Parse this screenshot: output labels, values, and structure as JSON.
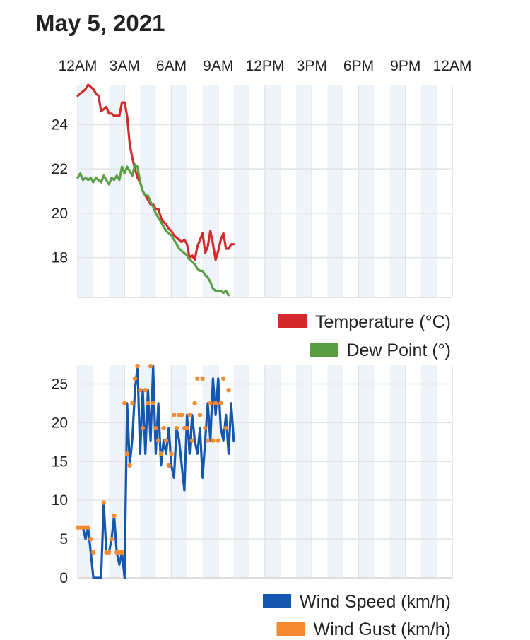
{
  "page_title": "May 5, 2021",
  "time_labels": [
    "12AM",
    "3AM",
    "6AM",
    "9AM",
    "12PM",
    "3PM",
    "6PM",
    "9PM",
    "12AM"
  ],
  "colors": {
    "temperature": "#d42a2e",
    "dew_point": "#5a9e44",
    "wind_speed": "#1456b0",
    "wind_gust": "#f58a31",
    "band": "#eef4fa",
    "grid": "#e3e3e3"
  },
  "chart_data": [
    {
      "type": "line",
      "x_unit": "hours since 12AM",
      "xlim": [
        0,
        24
      ],
      "ylim": [
        16.2,
        25.8
      ],
      "y_ticks": [
        18,
        20,
        22,
        24
      ],
      "grid": true,
      "legend_position": "bottom-right",
      "series": [
        {
          "name": "Temperature (°C)",
          "color": "#d42a2e",
          "x": [
            0,
            0.167,
            0.333,
            0.5,
            0.667,
            0.833,
            1.0,
            1.167,
            1.333,
            1.5,
            1.667,
            1.833,
            2.0,
            2.167,
            2.333,
            2.5,
            2.667,
            2.833,
            3.0,
            3.167,
            3.333,
            3.5,
            3.667,
            3.833,
            4.0,
            4.167,
            4.333,
            4.5,
            4.667,
            4.833,
            5.0,
            5.167,
            5.333,
            5.5,
            5.667,
            5.833,
            6.0,
            6.167,
            6.333,
            6.5,
            6.667,
            6.833,
            7.0,
            7.167,
            7.333,
            7.5,
            7.667,
            7.833,
            8.0,
            8.167,
            8.333,
            8.5,
            8.667,
            8.833,
            9.0,
            9.167,
            9.333,
            9.5,
            9.667,
            9.833,
            10.0
          ],
          "y": [
            25.3,
            25.4,
            25.5,
            25.6,
            25.8,
            25.7,
            25.6,
            25.4,
            25.3,
            24.6,
            24.7,
            24.8,
            24.5,
            24.5,
            24.4,
            24.4,
            24.4,
            25.0,
            25.0,
            24.4,
            23.1,
            22.5,
            22.0,
            21.6,
            21.4,
            21.0,
            20.8,
            20.6,
            20.4,
            20.4,
            20.2,
            20.2,
            19.8,
            19.6,
            19.5,
            19.3,
            19.2,
            19.0,
            18.9,
            18.8,
            18.7,
            18.8,
            18.6,
            18.0,
            18.1,
            17.9,
            18.5,
            18.8,
            19.1,
            18.2,
            18.5,
            19.2,
            18.6,
            17.9,
            18.3,
            18.8,
            19.1,
            18.4,
            18.4,
            18.6,
            18.6
          ],
          "x_end": 9.83
        },
        {
          "name": "Dew Point (°)",
          "color": "#5a9e44",
          "x": [
            0,
            0.167,
            0.333,
            0.5,
            0.667,
            0.833,
            1.0,
            1.167,
            1.333,
            1.5,
            1.667,
            1.833,
            2.0,
            2.167,
            2.333,
            2.5,
            2.667,
            2.833,
            3.0,
            3.167,
            3.333,
            3.5,
            3.667,
            3.833,
            4.0,
            4.167,
            4.333,
            4.5,
            4.667,
            4.833,
            5.0,
            5.167,
            5.333,
            5.5,
            5.667,
            5.833,
            6.0,
            6.167,
            6.333,
            6.5,
            6.667,
            6.833,
            7.0,
            7.167,
            7.333,
            7.5,
            7.667,
            7.833,
            8.0,
            8.167,
            8.333,
            8.5,
            8.667,
            8.833,
            9.0,
            9.167,
            9.333,
            9.5,
            9.667
          ],
          "y": [
            21.6,
            21.8,
            21.5,
            21.6,
            21.5,
            21.6,
            21.4,
            21.6,
            21.5,
            21.4,
            21.7,
            21.5,
            21.3,
            21.6,
            21.5,
            21.7,
            21.5,
            22.1,
            21.8,
            22.1,
            21.9,
            21.7,
            22.2,
            22.1,
            21.4,
            21.0,
            20.8,
            20.8,
            20.5,
            20.3,
            20.0,
            19.8,
            19.6,
            19.4,
            19.2,
            19.1,
            19.0,
            18.8,
            18.6,
            18.4,
            18.3,
            18.2,
            18.1,
            17.9,
            17.8,
            17.7,
            17.5,
            17.4,
            17.4,
            17.2,
            17.1,
            16.9,
            16.6,
            16.5,
            16.5,
            16.5,
            16.4,
            16.5,
            16.3
          ]
        }
      ]
    },
    {
      "type": "line",
      "x_unit": "hours since 12AM",
      "xlim": [
        0,
        24
      ],
      "ylim": [
        0,
        27.5
      ],
      "y_ticks": [
        0,
        5,
        10,
        15,
        20,
        25
      ],
      "grid": true,
      "legend_position": "bottom-right",
      "series": [
        {
          "name": "Wind Speed (km/h)",
          "color": "#1456b0",
          "x": [
            0,
            0.167,
            0.333,
            0.5,
            0.667,
            0.833,
            1.0,
            1.167,
            1.333,
            1.5,
            1.667,
            1.833,
            2.0,
            2.167,
            2.333,
            2.5,
            2.667,
            2.833,
            3.0,
            3.167,
            3.333,
            3.5,
            3.667,
            3.833,
            4.0,
            4.167,
            4.333,
            4.5,
            4.667,
            4.833,
            5.0,
            5.167,
            5.333,
            5.5,
            5.667,
            5.833,
            6.0,
            6.167,
            6.333,
            6.5,
            6.667,
            6.833,
            7.0,
            7.167,
            7.333,
            7.5,
            7.667,
            7.833,
            8.0,
            8.167,
            8.333,
            8.5,
            8.667,
            8.833,
            9.0,
            9.167,
            9.333,
            9.5,
            9.667,
            9.833,
            10.0
          ],
          "y": [
            6.5,
            6.5,
            6.5,
            5.0,
            6.5,
            3.3,
            0,
            0,
            0,
            0,
            9.7,
            3.3,
            3.3,
            5.0,
            8.0,
            3.3,
            1.7,
            3.3,
            0,
            22.5,
            14.5,
            18.0,
            24.2,
            27.3,
            16.0,
            24.2,
            16.0,
            24.2,
            17.7,
            27.3,
            16.0,
            22.5,
            14.5,
            17.7,
            16.0,
            19.3,
            14.5,
            12.9,
            19.3,
            17.7,
            14.5,
            11.3,
            21.0,
            16.0,
            21.0,
            17.7,
            16.0,
            19.3,
            12.9,
            17.7,
            22.5,
            17.7,
            25.7,
            21.0,
            25.7,
            19.3,
            17.7,
            21.0,
            16.0,
            22.5,
            17.7
          ],
          "x_end": 9.83
        },
        {
          "name": "Wind Gust (km/h)",
          "color": "#f58a31",
          "x": [
            0,
            0.167,
            0.333,
            0.5,
            0.667,
            0.833,
            1.0,
            1.667,
            1.833,
            2.0,
            2.167,
            2.333,
            2.5,
            2.667,
            2.833,
            3.0,
            3.167,
            3.333,
            3.5,
            3.667,
            3.833,
            4.0,
            4.167,
            4.333,
            4.5,
            4.667,
            4.833,
            5.0,
            5.167,
            5.333,
            5.5,
            5.667,
            5.833,
            6.0,
            6.167,
            6.333,
            6.5,
            6.667,
            6.833,
            7.0,
            7.167,
            7.333,
            7.5,
            7.667,
            7.833,
            8.0,
            8.167,
            8.333,
            8.5,
            8.667,
            8.833,
            9.0,
            9.167,
            9.333,
            9.5,
            9.667
          ],
          "y": [
            6.5,
            6.5,
            6.5,
            6.5,
            6.5,
            5.0,
            3.3,
            9.7,
            3.3,
            3.3,
            5.0,
            8.0,
            3.3,
            3.3,
            3.3,
            22.5,
            16.0,
            14.5,
            22.5,
            25.7,
            27.3,
            24.2,
            19.3,
            24.2,
            22.5,
            27.3,
            22.5,
            19.3,
            17.7,
            16.0,
            19.3,
            17.7,
            14.5,
            16.0,
            21.0,
            19.3,
            21.0,
            21.0,
            19.3,
            19.3,
            21.0,
            17.7,
            22.5,
            25.7,
            21.0,
            25.7,
            19.3,
            17.7,
            22.5,
            17.7,
            22.5,
            17.7,
            22.5,
            25.7,
            19.3,
            24.2
          ]
        }
      ]
    }
  ]
}
